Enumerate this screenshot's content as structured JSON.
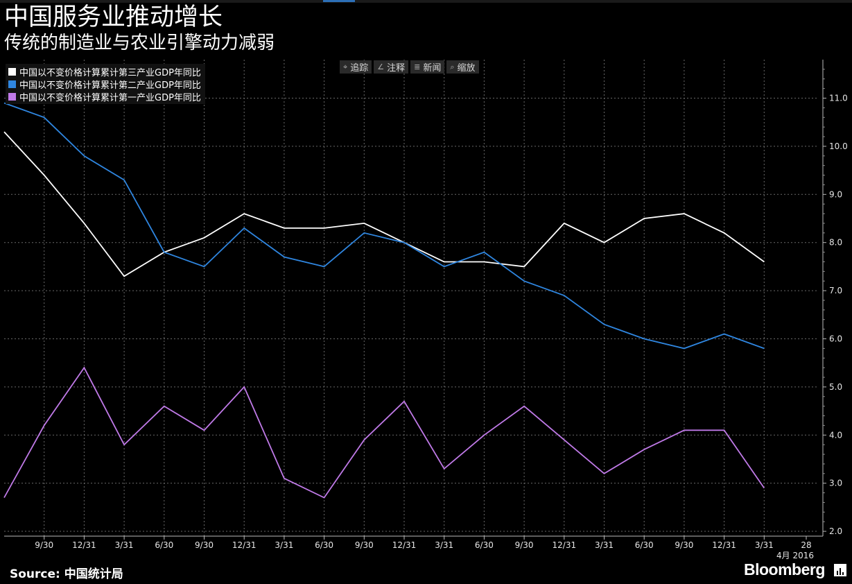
{
  "title": "中国服务业推动增长",
  "subtitle": "传统的制造业与农业引擎动力减弱",
  "toolbar": [
    {
      "icon": "crosshair-icon",
      "glyph": "⌖",
      "label": "追踪"
    },
    {
      "icon": "pencil-icon",
      "glyph": "∠",
      "label": "注释"
    },
    {
      "icon": "news-icon",
      "glyph": "≣",
      "label": "新闻"
    },
    {
      "icon": "magnifier-icon",
      "glyph": "⌕",
      "label": "缩放"
    }
  ],
  "source": "Source: 中国统计局",
  "brand": "Bloomberg",
  "colors": {
    "tertiary": "#ffffff",
    "secondary": "#2f86e0",
    "primary": "#c07ae8",
    "grid": "#6a6a6a"
  },
  "chart_data": {
    "type": "line",
    "title": "中国服务业推动增长",
    "subtitle": "传统的制造业与农业引擎动力减弱",
    "legend_position": "top-left",
    "grid": true,
    "ylim": [
      1.9,
      11.8
    ],
    "y_axis_side": "right",
    "y_ticks": [
      "2.0",
      "3.0",
      "4.0",
      "5.0",
      "6.0",
      "7.0",
      "8.0",
      "9.0",
      "10.0",
      "11.0"
    ],
    "x_tick_labels": [
      "9/30",
      "12/31",
      "3/31",
      "6/30",
      "9/30",
      "12/31",
      "3/31",
      "6/30",
      "9/30",
      "12/31",
      "3/31",
      "6/30",
      "9/30",
      "12/31",
      "3/31",
      "6/30",
      "9/30",
      "12/31",
      "3/31",
      "28"
    ],
    "x_sub_labels": [
      "4月 2016"
    ],
    "categories": [
      "2011/6/30",
      "2011/9/30",
      "2011/12/31",
      "2012/3/31",
      "2012/6/30",
      "2012/9/30",
      "2012/12/31",
      "2013/3/31",
      "2013/6/30",
      "2013/9/30",
      "2013/12/31",
      "2014/3/31",
      "2014/6/30",
      "2014/9/30",
      "2014/12/31",
      "2015/3/31",
      "2015/6/30",
      "2015/9/30",
      "2015/12/31",
      "2016/3/31"
    ],
    "series": [
      {
        "name": "中国以不变价格计算累计第三产业GDP年同比",
        "color": "#ffffff",
        "values": [
          10.3,
          9.4,
          8.4,
          7.3,
          7.8,
          8.1,
          8.6,
          8.3,
          8.3,
          8.4,
          8.0,
          7.6,
          7.6,
          7.5,
          8.4,
          8.0,
          8.5,
          8.6,
          8.2,
          7.6
        ]
      },
      {
        "name": "中国以不变价格计算累计第二产业GDP年同比",
        "color": "#2f86e0",
        "values": [
          10.9,
          10.6,
          9.8,
          9.3,
          7.8,
          7.5,
          8.3,
          7.7,
          7.5,
          8.2,
          8.0,
          7.5,
          7.8,
          7.2,
          6.9,
          6.3,
          6.0,
          5.8,
          6.1,
          5.8
        ]
      },
      {
        "name": "中国以不变价格计算累计第一产业GDP年同比",
        "color": "#c07ae8",
        "values": [
          2.7,
          4.2,
          5.4,
          3.8,
          4.6,
          4.1,
          5.0,
          3.1,
          2.7,
          3.9,
          4.7,
          3.3,
          4.0,
          4.6,
          3.9,
          3.2,
          3.7,
          4.1,
          4.1,
          2.9
        ]
      }
    ]
  }
}
